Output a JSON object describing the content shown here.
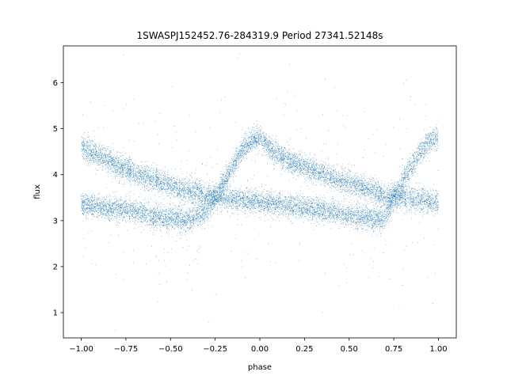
{
  "chart_data": {
    "type": "scatter",
    "title": "1SWASPJ152452.76-284319.9 Period 27341.52148s",
    "xlabel": "phase",
    "ylabel": "flux",
    "xlim": [
      -1.1,
      1.1
    ],
    "ylim": [
      0.45,
      6.8
    ],
    "xticks": [
      -1.0,
      -0.75,
      -0.5,
      -0.25,
      0.0,
      0.25,
      0.5,
      0.75,
      1.0
    ],
    "xtick_labels": [
      "−1.00",
      "−0.75",
      "−0.50",
      "−0.25",
      "0.00",
      "0.25",
      "0.50",
      "0.75",
      "1.00"
    ],
    "yticks": [
      1,
      2,
      3,
      4,
      5,
      6
    ],
    "ytick_labels": [
      "1",
      "2",
      "3",
      "4",
      "5",
      "6"
    ],
    "grid": false,
    "legend": "none",
    "point_color": "#1f77b4",
    "points_per_unit_phase": 7000,
    "branches": [
      {
        "x": [
          -1.0,
          -0.9,
          -0.8,
          -0.7,
          -0.6,
          -0.5,
          -0.4,
          -0.3,
          -0.25,
          -0.2,
          -0.15,
          -0.1,
          -0.05,
          0.0,
          0.05,
          0.1,
          0.2,
          0.3,
          0.4,
          0.5,
          0.6,
          0.7,
          0.75,
          0.8,
          0.85,
          0.9,
          0.95,
          1.0
        ],
        "y": [
          4.6,
          4.4,
          4.2,
          4.05,
          3.9,
          3.75,
          3.65,
          3.55,
          3.5,
          3.85,
          4.2,
          4.5,
          4.75,
          4.8,
          4.6,
          4.45,
          4.25,
          4.1,
          3.95,
          3.8,
          3.7,
          3.55,
          3.5,
          3.85,
          4.2,
          4.5,
          4.75,
          4.8
        ]
      },
      {
        "x": [
          -1.0,
          -0.9,
          -0.8,
          -0.7,
          -0.6,
          -0.5,
          -0.4,
          -0.3,
          -0.25,
          -0.2,
          -0.1,
          0.0,
          0.1,
          0.2,
          0.3,
          0.4,
          0.5,
          0.6,
          0.7,
          0.75,
          0.8,
          0.9,
          1.0
        ],
        "y": [
          3.35,
          3.3,
          3.25,
          3.2,
          3.1,
          3.05,
          3.0,
          3.2,
          3.5,
          3.5,
          3.45,
          3.4,
          3.35,
          3.3,
          3.25,
          3.2,
          3.1,
          3.05,
          3.05,
          3.5,
          3.5,
          3.45,
          3.4
        ]
      }
    ]
  }
}
